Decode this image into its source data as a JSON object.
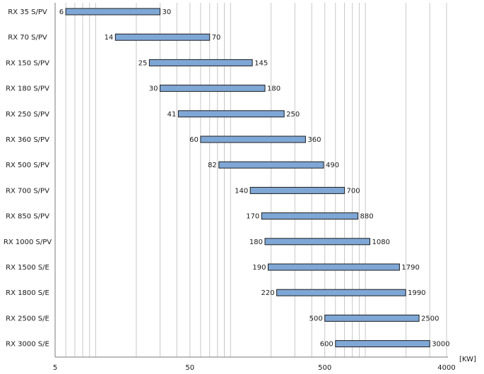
{
  "chart_data": {
    "type": "bar",
    "orientation": "horizontal-range",
    "x_scale": "log",
    "xlim": [
      5,
      4000
    ],
    "x_ticks": [
      5,
      50,
      500,
      4000
    ],
    "x_unit": "[KW]",
    "grid": true,
    "bar_color": "#7fa7d6",
    "series": [
      {
        "label": "RX 35 S/PV",
        "min": 6,
        "max": 30
      },
      {
        "label": "RX 70 S/PV",
        "min": 14,
        "max": 70
      },
      {
        "label": "RX 150 S/PV",
        "min": 25,
        "max": 145
      },
      {
        "label": "RX 180 S/PV",
        "min": 30,
        "max": 180
      },
      {
        "label": "RX 250 S/PV",
        "min": 41,
        "max": 250
      },
      {
        "label": "RX 360 S/PV",
        "min": 60,
        "max": 360
      },
      {
        "label": "RX 500 S/PV",
        "min": 82,
        "max": 490
      },
      {
        "label": "RX 700 S/PV",
        "min": 140,
        "max": 700
      },
      {
        "label": "RX 850 S/PV",
        "min": 170,
        "max": 880
      },
      {
        "label": "RX 1000 S/PV",
        "min": 180,
        "max": 1080
      },
      {
        "label": "RX 1500 S/E",
        "min": 190,
        "max": 1790
      },
      {
        "label": "RX 1800 S/E",
        "min": 220,
        "max": 1990
      },
      {
        "label": "RX 2500 S/E",
        "min": 500,
        "max": 2500
      },
      {
        "label": "RX 3000 S/E",
        "min": 600,
        "max": 3000
      }
    ]
  }
}
